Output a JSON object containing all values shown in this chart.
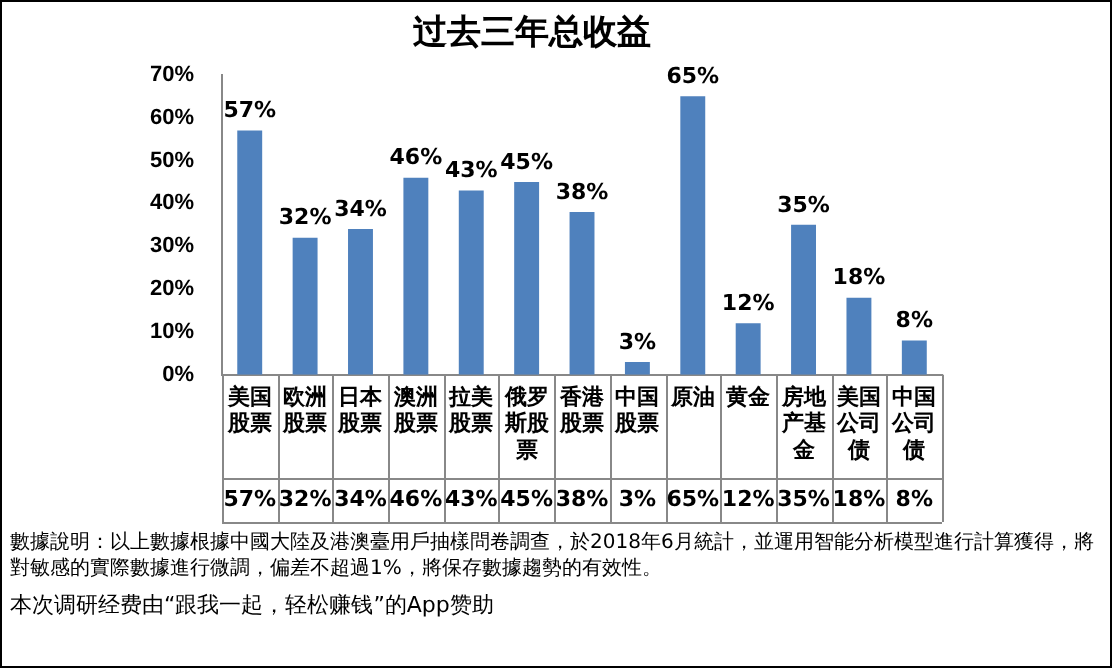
{
  "chart_data": {
    "type": "bar",
    "title": "过去三年总收益",
    "categories": [
      "美国股票",
      "欧洲股票",
      "日本股票",
      "澳洲股票",
      "拉美股票",
      "俄罗斯股票",
      "香港股票",
      "中国股票",
      "原油",
      "黄金",
      "房地产基金",
      "美国公司债",
      "中国公司债"
    ],
    "values": [
      57,
      32,
      34,
      46,
      43,
      45,
      38,
      3,
      65,
      12,
      35,
      18,
      8
    ],
    "value_labels": [
      "57%",
      "32%",
      "34%",
      "46%",
      "43%",
      "45%",
      "38%",
      "3%",
      "65%",
      "12%",
      "35%",
      "18%",
      "8%"
    ],
    "color": "#4f81bd",
    "ylim": [
      0,
      70
    ],
    "yticks": [
      {
        "value": 0,
        "label": "0%"
      },
      {
        "value": 10,
        "label": "10%"
      },
      {
        "value": 20,
        "label": "20%"
      },
      {
        "value": 30,
        "label": "30%"
      },
      {
        "value": 40,
        "label": "40%"
      },
      {
        "value": 50,
        "label": "50%"
      },
      {
        "value": 60,
        "label": "60%"
      },
      {
        "value": 70,
        "label": "70%"
      }
    ],
    "grid": false,
    "legend": false,
    "annotations": [
      "數據說明：以上數據根據中國大陸及港澳臺用戶抽樣問卷調查，於2018年6月統計，並運用智能分析模型進行計算獲得，將對敏感的實際數據進行微調，偏差不超過1%，將保存數據趨勢的有效性。",
      "本次调研经费由“跟我一起，轻松赚钱”的App赞助"
    ]
  }
}
